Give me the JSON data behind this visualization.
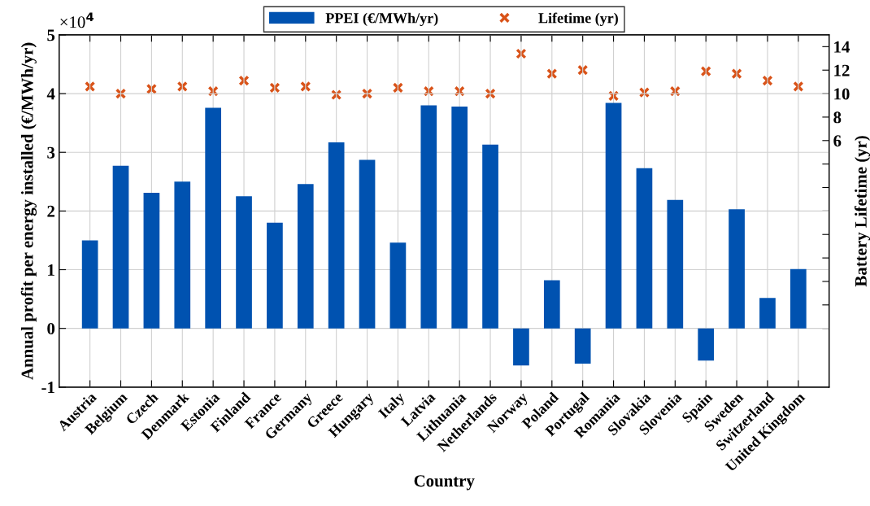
{
  "chart_data": {
    "type": "bar",
    "xlabel": "Country",
    "ylabel": "Annual profit per energy installed (€/MWh/yr)",
    "y2label": "Battery Lifetime (yr)",
    "categories": [
      "Austria",
      "Belgium",
      "Czech",
      "Denmark",
      "Estonia",
      "Finland",
      "France",
      "Germany",
      "Greece",
      "Hungary",
      "Italy",
      "Latvia",
      "Lithuania",
      "Netherlands",
      "Norway",
      "Poland",
      "Portugal",
      "Romania",
      "Slovakia",
      "Slovenia",
      "Spain",
      "Sweden",
      "Switzerland",
      "United Kingdom"
    ],
    "series": [
      {
        "name": "PPEI (€/MWh/yr)",
        "color": "#0052b0",
        "values": [
          1.5,
          2.77,
          2.31,
          2.5,
          3.76,
          2.25,
          1.8,
          2.46,
          3.17,
          2.87,
          1.46,
          3.8,
          3.78,
          3.13,
          -0.63,
          0.82,
          -0.6,
          3.84,
          2.73,
          2.19,
          -0.55,
          2.03,
          0.52,
          1.01
        ]
      },
      {
        "name": "Lifetime (yr)",
        "type": "scatter",
        "axis": "y2",
        "color": "#d95319",
        "marker": "cross",
        "values": [
          10.6,
          10.0,
          10.4,
          10.6,
          10.2,
          11.1,
          10.5,
          10.6,
          9.9,
          10.0,
          10.5,
          10.2,
          10.2,
          10.0,
          13.4,
          11.7,
          12.0,
          9.8,
          10.1,
          10.2,
          11.9,
          11.7,
          11.1,
          10.6
        ]
      }
    ],
    "ylim": [
      -1,
      5
    ],
    "yticks": [
      -1,
      0,
      1,
      2,
      3,
      4,
      5
    ],
    "y2lim": [
      -15,
      15
    ],
    "y2ticks": [
      {
        "value": -10,
        "label": null
      },
      {
        "value": -8,
        "label": null
      },
      {
        "value": -6,
        "label": null
      },
      {
        "value": -4,
        "label": null
      },
      {
        "value": -2,
        "label": null
      },
      {
        "value": 0,
        "label": null
      },
      {
        "value": 2,
        "label": null
      },
      {
        "value": 4,
        "label": null
      },
      6,
      8,
      10,
      12,
      14
    ],
    "annotations": [
      "×10$^{4}$"
    ],
    "grid": true,
    "legend": "top"
  }
}
